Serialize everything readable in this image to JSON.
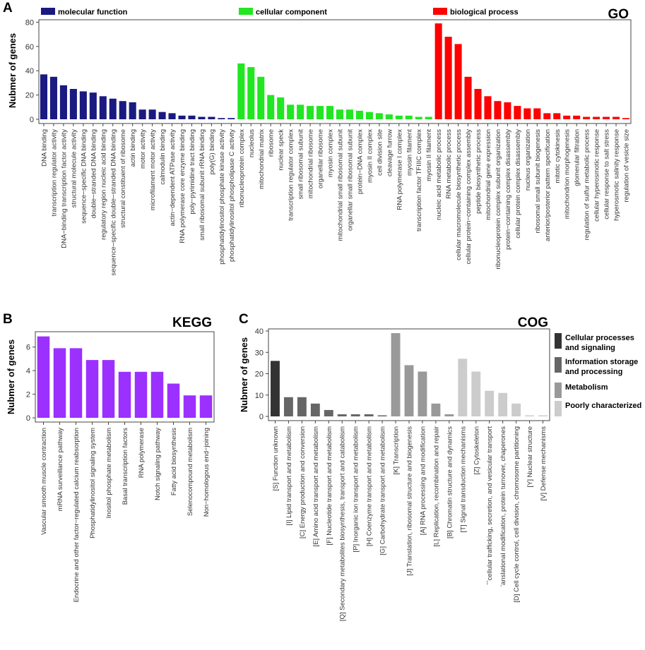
{
  "chart_data": [
    {
      "panel": "A",
      "type": "bar",
      "title": "GO",
      "ylabel": "Nubmer of genes",
      "ylim": [
        0,
        82
      ],
      "yticks": [
        0,
        20,
        40,
        60,
        80
      ],
      "grid": false,
      "legend": [
        {
          "label": "molecular function",
          "color": "#1a1a80"
        },
        {
          "label": "cellular component",
          "color": "#22e622"
        },
        {
          "label": "biological process",
          "color": "#ff0000"
        }
      ],
      "groups": [
        {
          "name": "molecular function",
          "color": "#1a1a80",
          "categories": [
            "DNA binding",
            "transcription regulator activity",
            "DNA−binding transcription factor activity",
            "structural molecule activity",
            "sequence−specific DNA binding",
            "double−stranded DNA binding",
            "regulatory region nucleic acid binding",
            "sequence−specific double−stranded DNA binding",
            "structural constituent of ribosome",
            "actin binding",
            "motor activity",
            "microfilament motor activity",
            "calmodulin binding",
            "actin−dependent ATPase activity",
            "RNA polymerase core enzyme binding",
            "poly−pyrimidine tract binding",
            "small ribosomal subunit rRNA binding",
            "poly(G) binding",
            "phosphatidylinositol phosphate kinase activity",
            "phosphatidylinositol phospholipase C activity"
          ],
          "values": [
            37,
            35,
            28,
            25,
            23,
            22,
            19,
            17,
            15,
            14,
            8,
            8,
            6,
            5,
            3,
            3,
            2,
            2,
            1,
            1
          ]
        },
        {
          "name": "cellular component",
          "color": "#22e622",
          "categories": [
            "ribonucleoprotein complex",
            "nucleolus",
            "mitochondrial matrix",
            "ribosome",
            "nuclear speck",
            "transcription regulator complex",
            "small ribosomal subunit",
            "mitochondrial ribosome",
            "organellar ribosome",
            "myosin complex",
            "mitochondrial small ribosomal subunit",
            "organellar small ribosomal subunit",
            "protein−DNA complex",
            "myosin II complex",
            "cell division site",
            "cleavage furrow",
            "RNA polymerase I complex",
            "myosin filament",
            "transcription factor TFIIIC complex",
            "myosin II filament"
          ],
          "values": [
            46,
            43,
            35,
            20,
            18,
            12,
            12,
            11,
            11,
            11,
            8,
            8,
            7,
            6,
            5,
            4,
            3,
            3,
            2,
            2
          ]
        },
        {
          "name": "biological process",
          "color": "#ff0000",
          "categories": [
            "nucleic acid metabolic process",
            "RNA metabolic process",
            "cellular macromolecule biosynthetic process",
            "cellular protein−containing complex assembly",
            "peptide biosynthetic process",
            "mitochondrial gene expression",
            "ribonucleoprotein complex subunit organization",
            "protein−containing complex disassembly",
            "cellular protein complex disassembly",
            "nucleus organization",
            "ribosomal small subunit biogenesis",
            "anterior/posterior pattern specification",
            "mitotic cytokinesis",
            "mitochondrion morphogenesis",
            "glomerular filtration",
            "regulation of sulfur metabolic process",
            "cellular hyperosmotic response",
            "cellular response to salt stress",
            "hyperosmotic salinity response",
            "regulation of vesicle size"
          ],
          "values": [
            79,
            68,
            62,
            35,
            25,
            19,
            15,
            14,
            11,
            9,
            9,
            5,
            5,
            3,
            3,
            2,
            2,
            2,
            2,
            1
          ]
        }
      ]
    },
    {
      "panel": "B",
      "type": "bar",
      "title": "KEGG",
      "ylabel": "Nubmer of genes",
      "ylim": [
        0,
        7.3
      ],
      "yticks": [
        0,
        2,
        4,
        6
      ],
      "color": "#9b30ff",
      "grid": false,
      "categories": [
        "Vascular smooth muscle contraction",
        "mRNA surveillance pathway",
        "Endocrine and other factor−regulated calcium reabsorption",
        "Phosphatidylinositol signaling system",
        "Inositol phosphate metabolism",
        "Basal transcription factors",
        "RNA polymerase",
        "Notch signaling pathway",
        "Fatty acid biosynthesis",
        "Selenocompound metabolism",
        "Non−homologous end−joining"
      ],
      "values": [
        6.9,
        5.9,
        5.9,
        4.9,
        4.9,
        3.9,
        3.9,
        3.9,
        2.9,
        1.9,
        1.9
      ]
    },
    {
      "panel": "C",
      "type": "bar",
      "title": "COG",
      "ylabel": "Nubmer of genes",
      "ylim": [
        0,
        41
      ],
      "yticks": [
        0,
        10,
        20,
        30,
        40
      ],
      "grid": false,
      "legend": [
        {
          "label": [
            "Cellular processes",
            "and signaling"
          ],
          "color": "#333333"
        },
        {
          "label": [
            "Information storage",
            "and processing"
          ],
          "color": "#666666"
        },
        {
          "label": [
            "Metabolism"
          ],
          "color": "#999999"
        },
        {
          "label": [
            "Poorly characterized"
          ],
          "color": "#cccccc"
        }
      ],
      "categories": [
        "[S] Function unknown",
        "[I] Lipid transport and metabolism",
        "[C] Energy production and conversion",
        "[E] Amino acid transport and metabolism",
        "[F] Nucleotide transport and metabolism",
        "[Q] Secondary metabolites biosynthesis, transport and catabolism",
        "[P] Inorganic ion transport and metabolism",
        "[H] Coenzyme transport and metabolism",
        "[G] Carbohydrate transport and metabolism",
        "[K] Transcription",
        "[J] Translation, ribosomal structure and biogenesis",
        "[A] RNA processing and modification",
        "[L] Replication, recombination and repair",
        "[B] Chromatin structure and dynamics",
        "[T] Signal transduction mechanisms",
        "[Z] Cytoskeleton",
        "ˆˆcellular trafficking, secretion, and vesicular transport",
        "’anslational modification, protein turnover, chaperones",
        "[D] Cell cycle control, cell division, chromosome partitioning",
        "[Y] Nuclear structure",
        "[V] Defense mechanisms"
      ],
      "values": [
        26,
        9,
        9,
        6,
        3,
        1,
        1,
        1,
        0.5,
        39,
        24,
        21,
        6,
        1,
        27,
        21,
        12,
        11,
        6,
        0.5,
        0.5
      ],
      "bar_colors": [
        "#333333",
        "#666666",
        "#666666",
        "#666666",
        "#666666",
        "#666666",
        "#666666",
        "#666666",
        "#666666",
        "#999999",
        "#999999",
        "#999999",
        "#999999",
        "#999999",
        "#cccccc",
        "#cccccc",
        "#cccccc",
        "#cccccc",
        "#cccccc",
        "#cccccc",
        "#cccccc"
      ]
    }
  ]
}
